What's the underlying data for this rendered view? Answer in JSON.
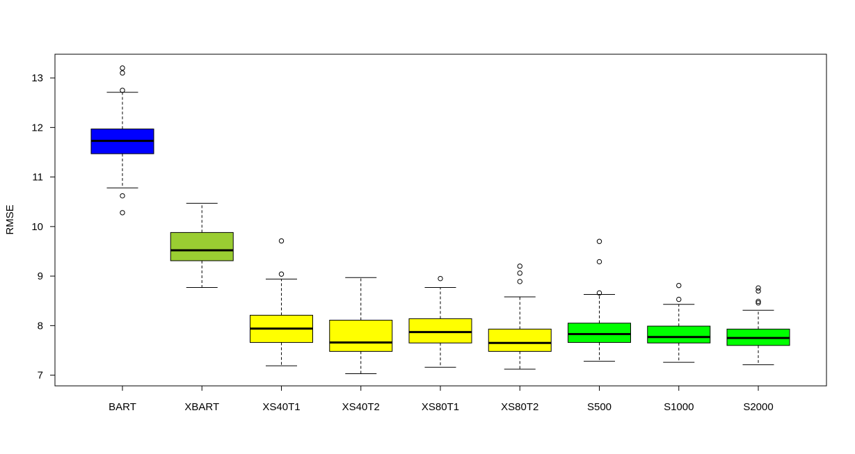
{
  "chart_data": {
    "type": "boxplot",
    "title": "",
    "xlabel": "",
    "ylabel": "RMSE",
    "ylim": [
      6.75,
      13.45
    ],
    "yticks": [
      7,
      8,
      9,
      10,
      11,
      12,
      13
    ],
    "ytick_labels": [
      "7",
      "8",
      "9",
      "10",
      "11",
      "12",
      "13"
    ],
    "grid": false,
    "legend": "none",
    "categories": [
      "BART",
      "XBART",
      "XS40T1",
      "XS40T2",
      "XS80T1",
      "XS80T2",
      "S500",
      "S1000",
      "S2000"
    ],
    "colors": [
      "#0000ff",
      "#9acd32",
      "#ffff00",
      "#ffff00",
      "#ffff00",
      "#ffff00",
      "#00ff00",
      "#00ff00",
      "#00ff00"
    ],
    "boxes": [
      {
        "name": "BART",
        "whisker_low": 10.78,
        "q1": 11.47,
        "median": 11.73,
        "q3": 11.97,
        "whisker_high": 12.71,
        "outliers": [
          10.28,
          10.62,
          12.75,
          13.1,
          13.2
        ]
      },
      {
        "name": "XBART",
        "whisker_low": 8.77,
        "q1": 9.31,
        "median": 9.52,
        "q3": 9.88,
        "whisker_high": 10.47,
        "outliers": []
      },
      {
        "name": "XS40T1",
        "whisker_low": 7.19,
        "q1": 7.66,
        "median": 7.94,
        "q3": 8.21,
        "whisker_high": 8.94,
        "outliers": [
          9.04,
          9.71
        ]
      },
      {
        "name": "XS40T2",
        "whisker_low": 7.03,
        "q1": 7.48,
        "median": 7.66,
        "q3": 8.11,
        "whisker_high": 8.97,
        "outliers": []
      },
      {
        "name": "XS80T1",
        "whisker_low": 7.16,
        "q1": 7.65,
        "median": 7.87,
        "q3": 8.14,
        "whisker_high": 8.77,
        "outliers": [
          8.95
        ]
      },
      {
        "name": "XS80T2",
        "whisker_low": 7.12,
        "q1": 7.48,
        "median": 7.65,
        "q3": 7.93,
        "whisker_high": 8.58,
        "outliers": [
          8.89,
          9.06,
          9.2
        ]
      },
      {
        "name": "S500",
        "whisker_low": 7.28,
        "q1": 7.66,
        "median": 7.83,
        "q3": 8.05,
        "whisker_high": 8.63,
        "outliers": [
          8.66,
          9.29,
          9.7
        ]
      },
      {
        "name": "S1000",
        "whisker_low": 7.26,
        "q1": 7.65,
        "median": 7.77,
        "q3": 7.99,
        "whisker_high": 8.43,
        "outliers": [
          8.53,
          8.81
        ]
      },
      {
        "name": "S2000",
        "whisker_low": 7.21,
        "q1": 7.6,
        "median": 7.75,
        "q3": 7.93,
        "whisker_high": 8.31,
        "outliers": [
          8.46,
          8.49,
          8.7,
          8.76
        ]
      }
    ]
  }
}
